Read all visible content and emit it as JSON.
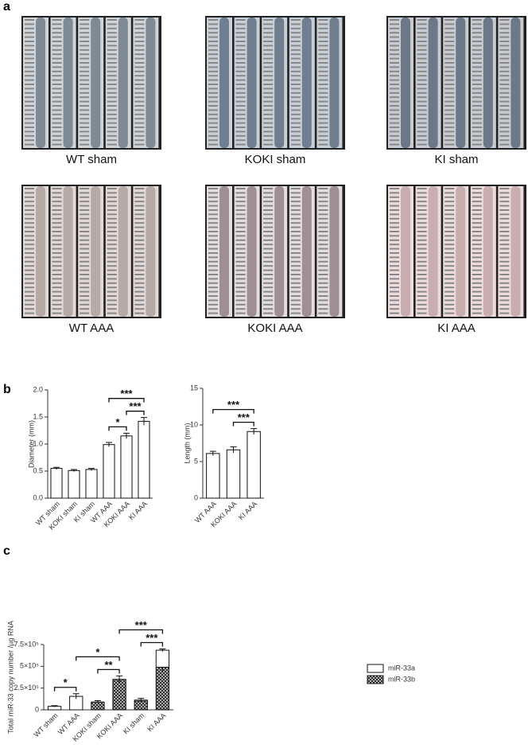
{
  "panel_labels": [
    "a",
    "b",
    "c"
  ],
  "photos": [
    {
      "caption": "WT sham"
    },
    {
      "caption": "KOKI sham"
    },
    {
      "caption": "KI sham"
    },
    {
      "caption": "WT AAA"
    },
    {
      "caption": "KOKI AAA"
    },
    {
      "caption": "KI AAA"
    }
  ],
  "chart_data": [
    {
      "type": "bar",
      "y_label": "Diameter (mm)",
      "categories": [
        "WT sham",
        "KOKI sham",
        "KI sham",
        "WT AAA",
        "KOKI AAA",
        "KI AAA"
      ],
      "values": [
        0.55,
        0.51,
        0.53,
        0.99,
        1.15,
        1.42
      ],
      "errors": [
        0.02,
        0.02,
        0.02,
        0.04,
        0.05,
        0.07
      ],
      "color": "#ffffff",
      "ylim": [
        0,
        2.0
      ],
      "yticks": [
        {
          "value": 0,
          "label": "0.0"
        },
        0.5,
        {
          "value": 1,
          "label": "1.0"
        },
        1.5,
        {
          "value": 2,
          "label": "2.0"
        }
      ],
      "annotations": [
        {
          "label": "*",
          "between": [
            "WT AAA",
            "KOKI AAA"
          ]
        },
        {
          "label": "***",
          "between": [
            "KOKI AAA",
            "KI AAA"
          ]
        },
        {
          "label": "***",
          "between": [
            "WT AAA",
            "KI AAA"
          ]
        }
      ]
    },
    {
      "type": "bar",
      "y_label": "Length (mm)",
      "categories": [
        "WT AAA",
        "KOKI AAA",
        "KI AAA"
      ],
      "values": [
        6.1,
        6.6,
        9.1
      ],
      "errors": [
        0.3,
        0.4,
        0.4
      ],
      "color": "#ffffff",
      "ylim": [
        0,
        15
      ],
      "yticks": [
        0,
        5,
        10,
        15
      ],
      "annotations": [
        {
          "label": "***",
          "between": [
            "KOKI AAA",
            "KI AAA"
          ]
        },
        {
          "label": "***",
          "between": [
            "WT AAA",
            "KI AAA"
          ]
        }
      ]
    },
    {
      "type": "stacked_bar",
      "y_label": "Total miR-33 copy number /µg RNA",
      "categories": [
        "WT sham",
        "WT AAA",
        "KOKI sham",
        "KOKI AAA",
        "KI sham",
        "KI AAA"
      ],
      "series": [
        {
          "name": "miR-33a",
          "color": "#ffffff",
          "values": [
            40000,
            155000,
            null,
            null,
            12000,
            195000
          ],
          "errors": [
            8000,
            30000,
            null,
            null,
            20000,
            15000
          ]
        },
        {
          "name": "miR-33b",
          "color": "#555555",
          "hatch": true,
          "values": [
            null,
            null,
            90000,
            350000,
            100000,
            490000
          ],
          "errors": [
            null,
            null,
            15000,
            40000,
            null,
            55000
          ]
        }
      ],
      "ylim": [
        0,
        750000
      ],
      "yticks": [
        0,
        {
          "value": 250000,
          "label": "2.5×10⁵"
        },
        {
          "value": 500000,
          "label": "5×10⁵"
        },
        {
          "value": 750000,
          "label": "7.5×10⁵"
        }
      ],
      "annotations": [
        {
          "label": "*",
          "between": [
            "WT sham",
            "WT AAA"
          ]
        },
        {
          "label": "**",
          "between": [
            "KOKI sham",
            "KOKI AAA"
          ]
        },
        {
          "label": "*",
          "between": [
            "WT AAA",
            "KOKI AAA"
          ]
        },
        {
          "label": "***",
          "between": [
            "KI sham",
            "KI AAA"
          ]
        },
        {
          "label": "***",
          "between": [
            "KOKI AAA",
            "KI AAA"
          ]
        }
      ]
    }
  ]
}
